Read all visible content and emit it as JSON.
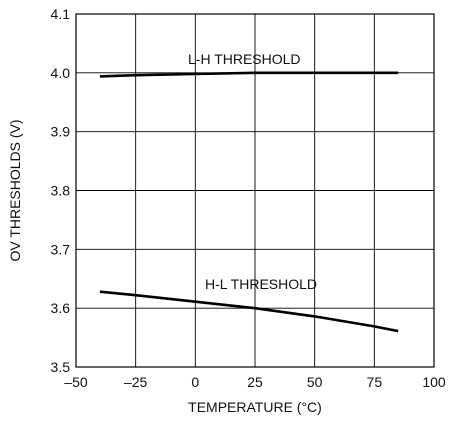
{
  "chart_data": {
    "type": "line",
    "xlabel": "TEMPERATURE (°C)",
    "ylabel": "OV THRESHOLDS (V)",
    "xlim": [
      -50,
      100
    ],
    "ylim": [
      3.5,
      4.1
    ],
    "x_ticks": [
      "–50",
      "–25",
      "0",
      "25",
      "50",
      "75",
      "100"
    ],
    "y_ticks": [
      "3.5",
      "3.6",
      "3.7",
      "3.8",
      "3.9",
      "4.0",
      "4.1"
    ],
    "grid": true,
    "series": [
      {
        "name": "L-H THRESHOLD",
        "x": [
          -40,
          -25,
          0,
          25,
          50,
          75,
          85
        ],
        "y": [
          3.994,
          3.996,
          3.998,
          4.0,
          4.0,
          4.0,
          4.0
        ]
      },
      {
        "name": "H-L THRESHOLD",
        "x": [
          -40,
          -25,
          0,
          25,
          50,
          75,
          85
        ],
        "y": [
          3.628,
          3.622,
          3.611,
          3.6,
          3.586,
          3.569,
          3.561
        ]
      }
    ],
    "colors": {
      "line": "#000000",
      "grid": "#000000"
    }
  }
}
